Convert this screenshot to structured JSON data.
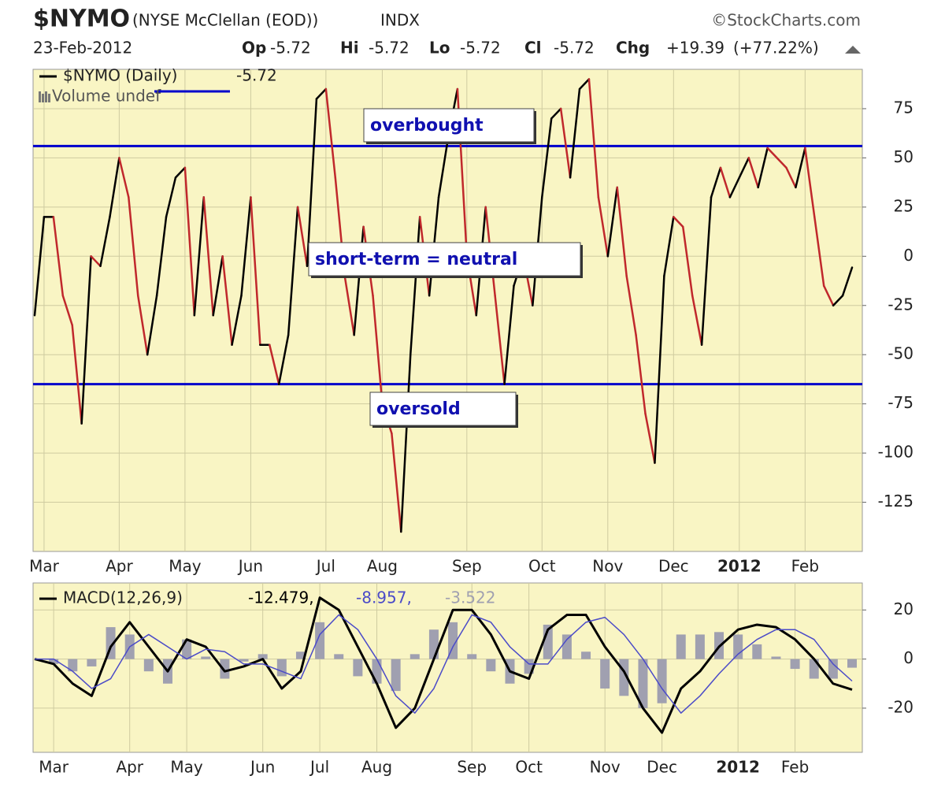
{
  "header": {
    "symbol": "$NYMO",
    "name": "(NYSE McClellan (EOD))",
    "exchange": "INDX",
    "source": "©StockCharts.com",
    "date": "23-Feb-2012",
    "quote": [
      {
        "label": "Op",
        "value": -5.72
      },
      {
        "label": "Hi",
        "value": -5.72
      },
      {
        "label": "Lo",
        "value": -5.72
      },
      {
        "label": "Cl",
        "value": -5.72
      },
      {
        "label": "Chg",
        "value": "+19.39"
      }
    ],
    "change_pct": "(+77.22%)"
  },
  "chart_data": [
    {
      "type": "line",
      "legend": {
        "label": "$NYMO (Daily)",
        "last": -5.72,
        "note": "Volume undef"
      },
      "categories": [
        null,
        "Mar",
        null,
        null,
        null,
        null,
        null,
        null,
        null,
        "Apr",
        null,
        null,
        null,
        null,
        null,
        null,
        "May",
        null,
        null,
        null,
        null,
        null,
        null,
        "Jun",
        null,
        null,
        null,
        null,
        null,
        null,
        null,
        "Jul",
        null,
        null,
        null,
        null,
        null,
        "Aug",
        null,
        null,
        null,
        null,
        null,
        null,
        null,
        null,
        "Sep",
        null,
        null,
        null,
        null,
        null,
        null,
        null,
        "Oct",
        null,
        null,
        null,
        null,
        null,
        null,
        "Nov",
        null,
        null,
        null,
        null,
        null,
        null,
        "Dec",
        null,
        null,
        null,
        null,
        null,
        null,
        "2012",
        null,
        null,
        null,
        null,
        null,
        null,
        "Feb",
        null,
        null,
        null,
        null,
        null
      ],
      "series": [
        {
          "up_color": "#000000",
          "down_color": "#c0282c",
          "values": [
            -30,
            20,
            20,
            -20,
            -35,
            -85,
            0,
            -5,
            20,
            50,
            30,
            -20,
            -50,
            -20,
            20,
            40,
            45,
            -30,
            30,
            -30,
            0,
            -45,
            -20,
            30,
            -45,
            -45,
            -65,
            -40,
            25,
            -5,
            80,
            85,
            40,
            -10,
            -40,
            15,
            -20,
            -75,
            -90,
            -140,
            -50,
            20,
            -20,
            30,
            60,
            85,
            0,
            -30,
            25,
            -20,
            -65,
            -15,
            0,
            -25,
            30,
            70,
            75,
            40,
            85,
            90,
            30,
            0,
            35,
            -10,
            -40,
            -80,
            -105,
            -10,
            20,
            15,
            -20,
            -45,
            30,
            45,
            30,
            40,
            50,
            35,
            55,
            50,
            45,
            35,
            55,
            20,
            -15,
            -25,
            -20,
            -5.72
          ]
        }
      ],
      "hlines": [
        {
          "value": 56,
          "color": "#0000cc"
        },
        {
          "value": -65,
          "color": "#0000cc"
        }
      ],
      "annotations": [
        "overbought",
        "short-term = neutral",
        "oversold"
      ],
      "ylim": [
        -150,
        95
      ],
      "yticks": [
        75,
        50,
        25,
        0,
        -25,
        -50,
        -75,
        -100,
        -125
      ],
      "grid": true,
      "background": "#f9f5c4"
    },
    {
      "type": "macd",
      "legend": {
        "label": "MACD(12,26,9)",
        "values": [
          "-12.479,",
          "-8.957,",
          "-3.522"
        ]
      },
      "categories": [
        null,
        "Mar",
        null,
        null,
        null,
        "Apr",
        null,
        null,
        "May",
        null,
        null,
        null,
        "Jun",
        null,
        null,
        "Jul",
        null,
        null,
        "Aug",
        null,
        null,
        null,
        null,
        "Sep",
        null,
        null,
        "Oct",
        null,
        null,
        null,
        "Nov",
        null,
        null,
        "Dec",
        null,
        null,
        null,
        "2012",
        null,
        null,
        "Feb",
        null,
        null,
        null
      ],
      "series": [
        {
          "color": "#000000",
          "values": [
            0,
            -2,
            -10,
            -15,
            5,
            15,
            5,
            -5,
            8,
            5,
            -5,
            -3,
            0,
            -12,
            -5,
            25,
            20,
            5,
            -10,
            -28,
            -20,
            0,
            20,
            20,
            10,
            -5,
            -8,
            12,
            18,
            18,
            5,
            -5,
            -20,
            -30,
            -12,
            -5,
            5,
            12,
            14,
            13,
            8,
            0,
            -10,
            -12.479
          ]
        },
        {
          "color": "#4b4bc8",
          "values": [
            0,
            0,
            -5,
            -12,
            -8,
            5,
            10,
            5,
            0,
            4,
            3,
            -2,
            -2,
            -5,
            -8,
            10,
            18,
            12,
            0,
            -15,
            -22,
            -12,
            5,
            18,
            15,
            5,
            -2,
            -2,
            8,
            15,
            17,
            10,
            0,
            -12,
            -22,
            -15,
            -6,
            2,
            8,
            12,
            12,
            8,
            -2,
            -8.957
          ]
        },
        {
          "type": "histogram",
          "color": "#a0a0b0",
          "values": [
            0,
            -2,
            -5,
            -3,
            13,
            10,
            -5,
            -10,
            8,
            1,
            -8,
            -1,
            2,
            -7,
            3,
            15,
            2,
            -7,
            -10,
            -13,
            2,
            12,
            15,
            2,
            -5,
            -10,
            -6,
            14,
            10,
            3,
            -12,
            -15,
            -20,
            -18,
            10,
            10,
            11,
            10,
            6,
            1,
            -4,
            -8,
            -8,
            -3.522
          ]
        }
      ],
      "ylim": [
        -38,
        31
      ],
      "yticks": [
        20,
        0,
        -20
      ],
      "grid": true,
      "background": "#f9f5c4"
    }
  ]
}
